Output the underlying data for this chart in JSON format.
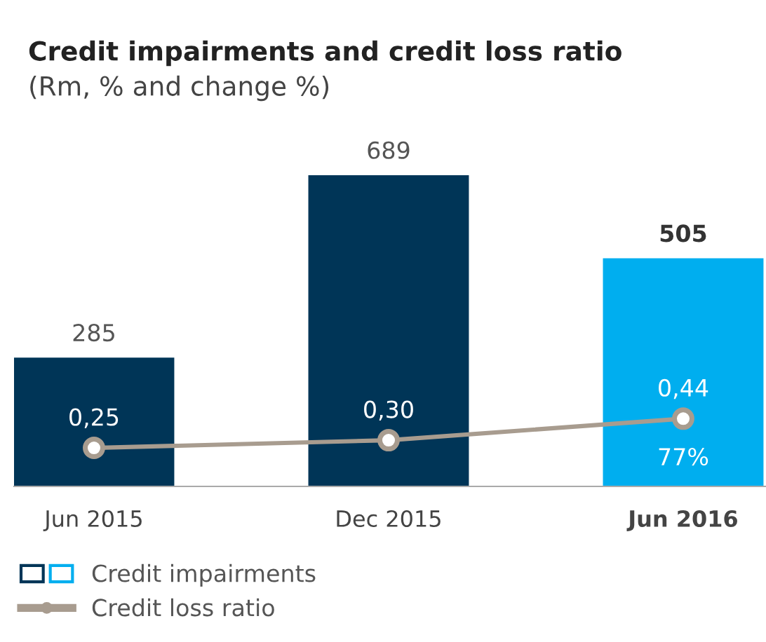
{
  "chart_data": {
    "type": "bar",
    "title": "Credit impairments and credit loss ratio",
    "subtitle": "(Rm, % and change %)",
    "categories": [
      "Jun 2015",
      "Dec 2015",
      "Jun 2016"
    ],
    "series": [
      {
        "name": "Credit impairments",
        "colors": [
          "#003557",
          "#003557",
          "#00aeef"
        ],
        "values": [
          285,
          689,
          505
        ],
        "value_labels": [
          "285",
          "689",
          "505"
        ]
      },
      {
        "name": "Credit loss ratio",
        "type": "line",
        "axis": "y2",
        "color": "#a89c8f",
        "values": [
          0.25,
          0.3,
          0.44
        ],
        "value_labels": [
          "0,25",
          "0,30",
          "0,44"
        ]
      }
    ],
    "annotations": [
      "77%"
    ],
    "tick_labels": "x",
    "grid": false,
    "legend": "bottom left",
    "marker": "circle",
    "line_style": "solid"
  }
}
